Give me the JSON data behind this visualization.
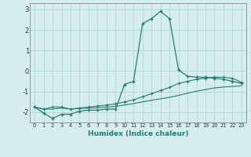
{
  "xlabel": "Humidex (Indice chaleur)",
  "bg_color": "#d4edee",
  "grid_color": "#b8d8d8",
  "line_color": "#2a7a70",
  "x_values": [
    0,
    1,
    2,
    3,
    4,
    5,
    6,
    7,
    8,
    9,
    10,
    11,
    12,
    13,
    14,
    15,
    16,
    17,
    18,
    19,
    20,
    21,
    22,
    23
  ],
  "line1": [
    -1.75,
    -2.05,
    -2.3,
    -2.1,
    -2.1,
    -1.95,
    -1.9,
    -1.9,
    -1.85,
    -1.85,
    -0.65,
    -0.5,
    2.3,
    2.55,
    2.9,
    2.55,
    0.05,
    -0.25,
    -0.3,
    -0.3,
    -0.35,
    -0.4,
    -0.5,
    -0.6
  ],
  "line2": [
    -1.75,
    -1.85,
    -1.75,
    -1.75,
    -1.85,
    -1.8,
    -1.75,
    -1.7,
    -1.65,
    -1.6,
    -1.5,
    -1.4,
    -1.25,
    -1.1,
    -0.95,
    -0.8,
    -0.6,
    -0.5,
    -0.4,
    -0.35,
    -0.3,
    -0.3,
    -0.35,
    -0.55
  ],
  "line3": [
    -1.75,
    -1.85,
    -1.85,
    -1.8,
    -1.85,
    -1.82,
    -1.8,
    -1.78,
    -1.75,
    -1.72,
    -1.65,
    -1.58,
    -1.5,
    -1.42,
    -1.35,
    -1.28,
    -1.18,
    -1.08,
    -0.98,
    -0.9,
    -0.82,
    -0.78,
    -0.75,
    -0.72
  ],
  "ylim": [
    -2.5,
    3.3
  ],
  "yticks": [
    -2,
    -1,
    0,
    1,
    2,
    3
  ]
}
